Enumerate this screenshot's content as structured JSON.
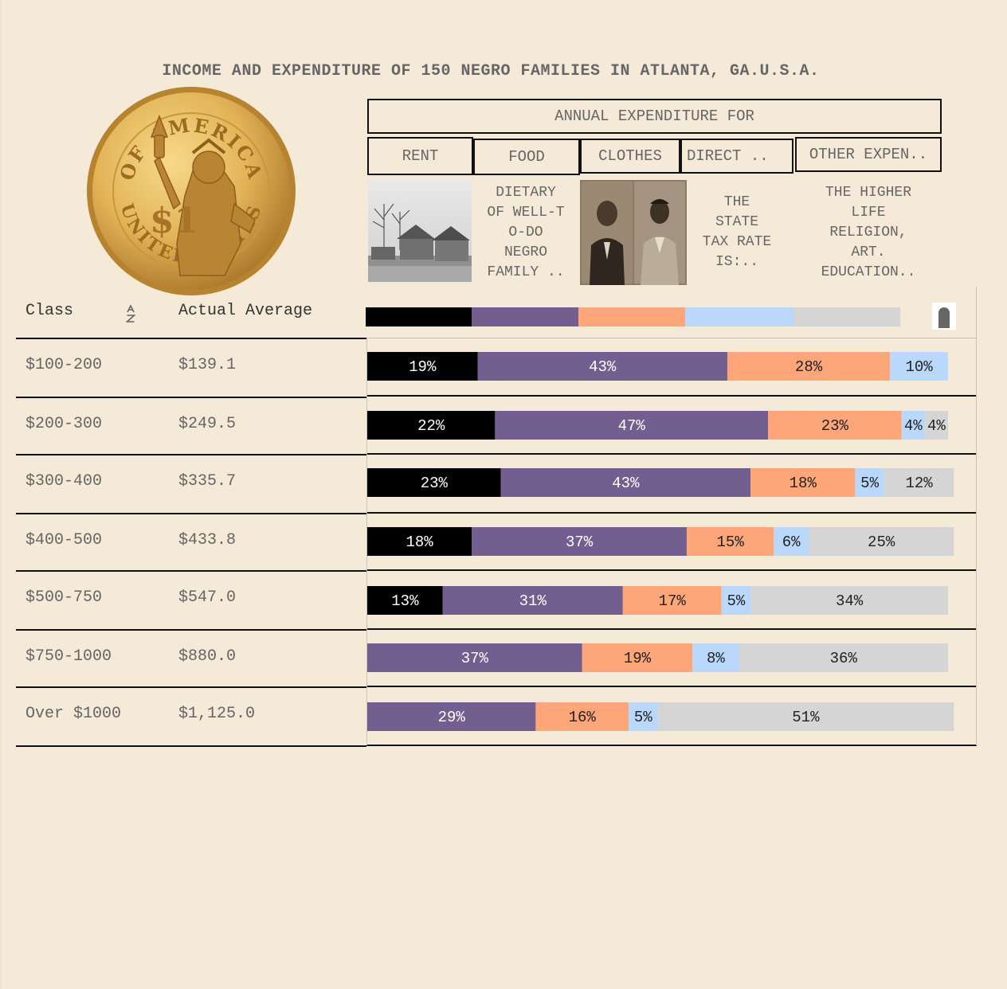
{
  "title": "INCOME AND EXPENDITURE OF 150 NEGRO FAMILIES IN ATLANTA, GA.U.S.A.",
  "header": {
    "group_label": "ANNUAL EXPENDITURE FOR",
    "categories": [
      "RENT",
      "FOOD",
      "CLOTHES",
      "DIRECT ..",
      "OTHER EXPEN.."
    ],
    "descriptions": {
      "food": "DIETARY\nOF WELL-T\nO-DO\nNEGRO\nFAMILY ..",
      "direct": "THE\nSTATE\nTAX RATE\nIS:..",
      "other": "THE HIGHER\nLIFE\nRELIGION,\nART.\nEDUCATION.."
    }
  },
  "columns": {
    "class_label": "Class",
    "sort_icon": "sort-az-icon",
    "average_label": "Actual Average"
  },
  "colors": {
    "rent": "#000000",
    "food": "#735f8f",
    "clothes": "#fca679",
    "direct": "#b9d8fb",
    "other": "#d5d5d5"
  },
  "coin": {
    "top_text": "OF AMERICA",
    "bottom_text": "UNITED STATES",
    "denomination": "$1"
  },
  "chart_data": {
    "type": "bar",
    "orientation": "horizontal",
    "stacked": true,
    "title": "INCOME AND EXPENDITURE OF 150 NEGRO FAMILIES IN ATLANTA, GA.U.S.A.",
    "xlim": [
      0,
      100
    ],
    "categories": [
      "$100-200",
      "$200-300",
      "$300-400",
      "$400-500",
      "$500-750",
      "$750-1000",
      "Over $1000"
    ],
    "actual_average": [
      "$139.1",
      "$249.5",
      "$335.7",
      "$433.8",
      "$547.0",
      "$880.0",
      "$1,125.0"
    ],
    "series": [
      {
        "name": "RENT",
        "values": [
          19,
          22,
          23,
          18,
          13,
          0,
          0
        ]
      },
      {
        "name": "FOOD",
        "values": [
          43,
          47,
          43,
          37,
          31,
          37,
          29
        ]
      },
      {
        "name": "CLOTHES",
        "values": [
          28,
          23,
          18,
          15,
          17,
          19,
          16
        ]
      },
      {
        "name": "DIRECT ..",
        "values": [
          10,
          4,
          5,
          6,
          5,
          8,
          5
        ]
      },
      {
        "name": "OTHER EXPEN..",
        "values": [
          0,
          4,
          12,
          25,
          34,
          36,
          51
        ]
      }
    ],
    "label_format": "{v}%"
  }
}
